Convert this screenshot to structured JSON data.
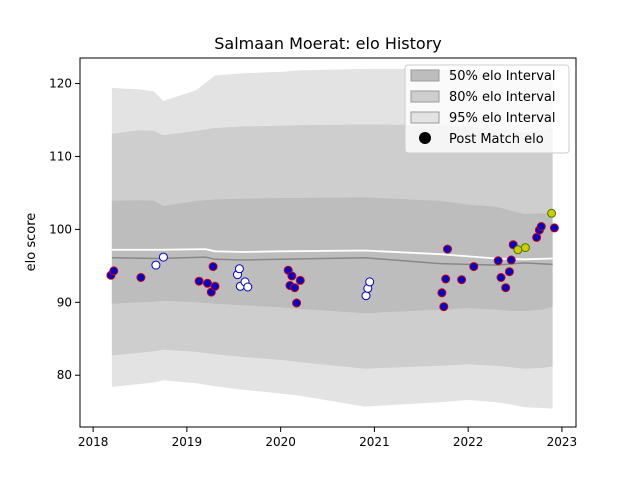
{
  "chart_data": {
    "type": "line",
    "title": "Salmaan Moerat: elo History",
    "ylabel": "elo score",
    "xlabel": "",
    "xlim": [
      2017.86,
      2023.15
    ],
    "ylim": [
      72.9,
      123.5
    ],
    "grid": false,
    "legend_position": "top-right",
    "x_ticks": [
      {
        "value": 2018,
        "label": "2018"
      },
      {
        "value": 2019,
        "label": "2019"
      },
      {
        "value": 2020,
        "label": "2020"
      },
      {
        "value": 2021,
        "label": "2021"
      },
      {
        "value": 2022,
        "label": "2022"
      },
      {
        "value": 2023,
        "label": "2023"
      }
    ],
    "y_ticks": [
      {
        "value": 80,
        "label": "80"
      },
      {
        "value": 90,
        "label": "90"
      },
      {
        "value": 100,
        "label": "100"
      },
      {
        "value": 110,
        "label": "110"
      },
      {
        "value": 120,
        "label": "120"
      }
    ],
    "legend": [
      {
        "label": "50% elo Interval",
        "kind": "band50"
      },
      {
        "label": "80% elo Interval",
        "kind": "band80"
      },
      {
        "label": "95% elo Interval",
        "kind": "band95"
      },
      {
        "label": "Post Match elo",
        "kind": "marker"
      }
    ],
    "colors": {
      "band95": "#e3e3e3",
      "band80": "#cecece",
      "band50": "#bdbdbd",
      "mean_line": "#888888",
      "prior_line": "#ffffff",
      "marker_edge_win": "#cc0000",
      "marker_fill_win": "#0000cc",
      "marker_edge_loss": "#0000cc",
      "marker_fill_loss": "#ffffff",
      "marker_edge_draw": "#4a7a00",
      "marker_fill_draw": "#cccc00",
      "axis": "#000000"
    },
    "bands": [
      {
        "x": 2018.2,
        "p2_5": 78.4,
        "p10": 82.7,
        "p25": 89.8,
        "p75": 103.9,
        "p90": 113.1,
        "p97_5": 119.4
      },
      {
        "x": 2018.5,
        "p2_5": 78.8,
        "p10": 83.1,
        "p25": 90.0,
        "p75": 104.0,
        "p90": 113.6,
        "p97_5": 119.2
      },
      {
        "x": 2018.65,
        "p2_5": 79.0,
        "p10": 83.3,
        "p25": 90.1,
        "p75": 103.9,
        "p90": 113.5,
        "p97_5": 118.9
      },
      {
        "x": 2018.75,
        "p2_5": 79.3,
        "p10": 83.5,
        "p25": 90.2,
        "p75": 103.2,
        "p90": 112.9,
        "p97_5": 117.6
      },
      {
        "x": 2019.1,
        "p2_5": 78.9,
        "p10": 83.2,
        "p25": 90.0,
        "p75": 103.9,
        "p90": 113.5,
        "p97_5": 119.1
      },
      {
        "x": 2019.3,
        "p2_5": 78.5,
        "p10": 82.9,
        "p25": 89.8,
        "p75": 104.1,
        "p90": 113.9,
        "p97_5": 121.1
      },
      {
        "x": 2019.6,
        "p2_5": 78.0,
        "p10": 82.5,
        "p25": 89.6,
        "p75": 104.2,
        "p90": 114.1,
        "p97_5": 121.4
      },
      {
        "x": 2020.0,
        "p2_5": 77.5,
        "p10": 82.1,
        "p25": 89.3,
        "p75": 104.3,
        "p90": 114.2,
        "p97_5": 121.6
      },
      {
        "x": 2020.2,
        "p2_5": 77.2,
        "p10": 81.8,
        "p25": 89.1,
        "p75": 104.3,
        "p90": 114.3,
        "p97_5": 121.8
      },
      {
        "x": 2020.9,
        "p2_5": 75.7,
        "p10": 80.9,
        "p25": 88.5,
        "p75": 104.4,
        "p90": 114.4,
        "p97_5": 122.0
      },
      {
        "x": 2021.7,
        "p2_5": 76.3,
        "p10": 81.3,
        "p25": 89.0,
        "p75": 103.9,
        "p90": 114.3,
        "p97_5": 122.0
      },
      {
        "x": 2022.0,
        "p2_5": 76.6,
        "p10": 81.5,
        "p25": 89.2,
        "p75": 103.4,
        "p90": 114.1,
        "p97_5": 121.8
      },
      {
        "x": 2022.3,
        "p2_5": 76.3,
        "p10": 81.3,
        "p25": 89.0,
        "p75": 103.1,
        "p90": 113.8,
        "p97_5": 121.5
      },
      {
        "x": 2022.45,
        "p2_5": 76.0,
        "p10": 81.1,
        "p25": 88.8,
        "p75": 102.6,
        "p90": 113.6,
        "p97_5": 121.2
      },
      {
        "x": 2022.6,
        "p2_5": 75.6,
        "p10": 80.9,
        "p25": 88.8,
        "p75": 102.1,
        "p90": 113.3,
        "p97_5": 120.8
      },
      {
        "x": 2022.8,
        "p2_5": 75.5,
        "p10": 81.0,
        "p25": 89.0,
        "p75": 102.2,
        "p90": 113.6,
        "p97_5": 120.7
      },
      {
        "x": 2022.9,
        "p2_5": 75.4,
        "p10": 81.2,
        "p25": 89.4,
        "p75": 102.3,
        "p90": 113.9,
        "p97_5": 120.5
      }
    ],
    "mean_series": [
      {
        "x": 2018.2,
        "y": 96.1
      },
      {
        "x": 2018.7,
        "y": 96.0
      },
      {
        "x": 2019.2,
        "y": 96.2
      },
      {
        "x": 2019.3,
        "y": 95.9
      },
      {
        "x": 2019.6,
        "y": 95.8
      },
      {
        "x": 2020.0,
        "y": 95.9
      },
      {
        "x": 2020.9,
        "y": 96.1
      },
      {
        "x": 2021.7,
        "y": 95.3
      },
      {
        "x": 2022.3,
        "y": 95.1
      },
      {
        "x": 2022.6,
        "y": 95.4
      },
      {
        "x": 2022.9,
        "y": 95.2
      }
    ],
    "prior_series": [
      {
        "x": 2018.2,
        "y": 97.2
      },
      {
        "x": 2018.7,
        "y": 97.2
      },
      {
        "x": 2019.2,
        "y": 97.3
      },
      {
        "x": 2019.3,
        "y": 97.0
      },
      {
        "x": 2019.6,
        "y": 96.9
      },
      {
        "x": 2020.0,
        "y": 97.0
      },
      {
        "x": 2020.9,
        "y": 97.1
      },
      {
        "x": 2021.7,
        "y": 96.6
      },
      {
        "x": 2022.3,
        "y": 96.0
      },
      {
        "x": 2022.6,
        "y": 95.9
      },
      {
        "x": 2022.9,
        "y": 96.0
      }
    ],
    "points": [
      {
        "x": 2018.19,
        "y": 93.7,
        "result": "win"
      },
      {
        "x": 2018.22,
        "y": 94.3,
        "result": "win"
      },
      {
        "x": 2018.51,
        "y": 93.4,
        "result": "win"
      },
      {
        "x": 2018.67,
        "y": 95.1,
        "result": "loss"
      },
      {
        "x": 2018.75,
        "y": 96.2,
        "result": "loss"
      },
      {
        "x": 2019.13,
        "y": 92.9,
        "result": "win"
      },
      {
        "x": 2019.22,
        "y": 92.6,
        "result": "win"
      },
      {
        "x": 2019.26,
        "y": 91.4,
        "result": "win"
      },
      {
        "x": 2019.28,
        "y": 94.9,
        "result": "win"
      },
      {
        "x": 2019.3,
        "y": 92.2,
        "result": "win"
      },
      {
        "x": 2019.54,
        "y": 93.8,
        "result": "loss"
      },
      {
        "x": 2019.56,
        "y": 94.6,
        "result": "loss"
      },
      {
        "x": 2019.57,
        "y": 92.2,
        "result": "loss"
      },
      {
        "x": 2019.62,
        "y": 92.8,
        "result": "loss"
      },
      {
        "x": 2019.65,
        "y": 92.1,
        "result": "loss"
      },
      {
        "x": 2020.08,
        "y": 94.4,
        "result": "win"
      },
      {
        "x": 2020.1,
        "y": 92.3,
        "result": "win"
      },
      {
        "x": 2020.12,
        "y": 93.6,
        "result": "win"
      },
      {
        "x": 2020.15,
        "y": 92.0,
        "result": "win"
      },
      {
        "x": 2020.17,
        "y": 89.9,
        "result": "win"
      },
      {
        "x": 2020.21,
        "y": 93.0,
        "result": "win"
      },
      {
        "x": 2020.91,
        "y": 90.9,
        "result": "loss"
      },
      {
        "x": 2020.93,
        "y": 91.9,
        "result": "loss"
      },
      {
        "x": 2020.95,
        "y": 92.8,
        "result": "loss"
      },
      {
        "x": 2021.72,
        "y": 91.3,
        "result": "win"
      },
      {
        "x": 2021.74,
        "y": 89.4,
        "result": "win"
      },
      {
        "x": 2021.76,
        "y": 93.2,
        "result": "win"
      },
      {
        "x": 2021.78,
        "y": 97.3,
        "result": "win"
      },
      {
        "x": 2021.93,
        "y": 93.1,
        "result": "win"
      },
      {
        "x": 2022.06,
        "y": 94.9,
        "result": "win"
      },
      {
        "x": 2022.32,
        "y": 95.7,
        "result": "win"
      },
      {
        "x": 2022.35,
        "y": 93.4,
        "result": "win"
      },
      {
        "x": 2022.4,
        "y": 92.0,
        "result": "win"
      },
      {
        "x": 2022.44,
        "y": 94.2,
        "result": "win"
      },
      {
        "x": 2022.46,
        "y": 95.8,
        "result": "win"
      },
      {
        "x": 2022.48,
        "y": 97.9,
        "result": "win"
      },
      {
        "x": 2022.53,
        "y": 97.2,
        "result": "draw"
      },
      {
        "x": 2022.61,
        "y": 97.5,
        "result": "draw"
      },
      {
        "x": 2022.73,
        "y": 98.9,
        "result": "win"
      },
      {
        "x": 2022.76,
        "y": 99.9,
        "result": "win"
      },
      {
        "x": 2022.78,
        "y": 100.4,
        "result": "win"
      },
      {
        "x": 2022.89,
        "y": 102.2,
        "result": "draw"
      },
      {
        "x": 2022.92,
        "y": 100.2,
        "result": "win"
      }
    ]
  }
}
